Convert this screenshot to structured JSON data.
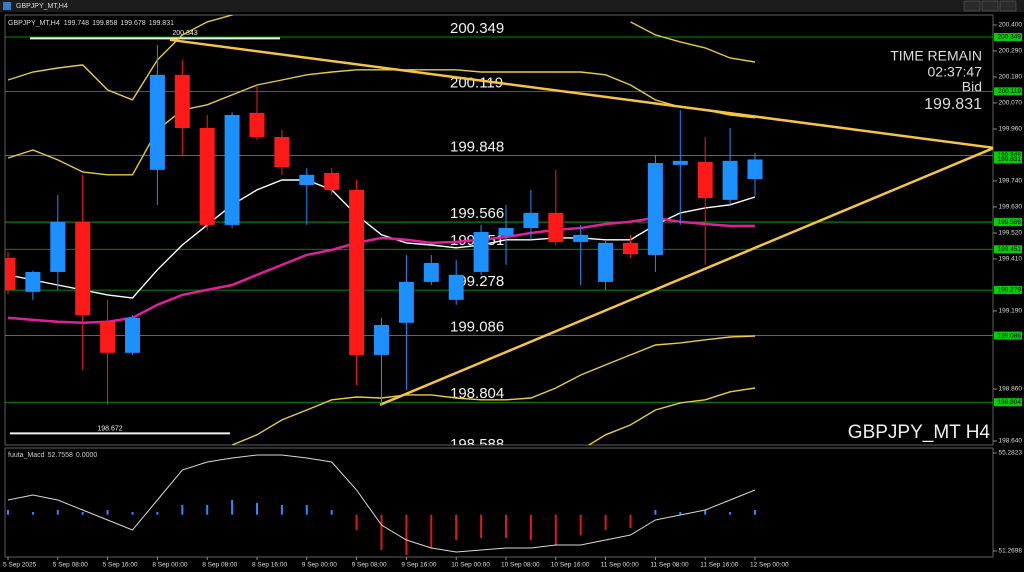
{
  "chart_data": [
    {
      "type": "candlestick",
      "title": "GBPJPY_MT,H4",
      "categories": [
        "5 Sep 2025",
        null,
        "5 Sep 08:00",
        null,
        "5 Sep 16:00",
        null,
        "8 Sep 00:00",
        null,
        "8 Sep 08:00",
        null,
        "8 Sep 16:00",
        null,
        "9 Sep 00:00",
        null,
        "9 Sep 08:00",
        null,
        "9 Sep 16:00",
        null,
        "10 Sep 00:00",
        null,
        "10 Sep 08:00",
        null,
        "10 Sep 16:00",
        null,
        "11 Sep 00:00",
        null,
        "11 Sep 08:00",
        null,
        "11 Sep 16:00",
        null,
        "12 Sep 00:00"
      ],
      "candles": {
        "up_color": "#1e8fff",
        "down_color": "#ff1a1a",
        "open": [
          199.414,
          199.271,
          199.355,
          199.567,
          199.144,
          199.013,
          199.787,
          200.189,
          199.964,
          199.554,
          200.028,
          199.926,
          199.723,
          199.774,
          199.702,
          199.004,
          199.14,
          199.313,
          199.237,
          199.355,
          199.508,
          199.541,
          199.605,
          199.482,
          199.313,
          199.478,
          199.427,
          199.808,
          199.82,
          199.66,
          199.748
        ],
        "high": [
          199.44,
          199.36,
          199.681,
          199.766,
          199.237,
          199.173,
          200.315,
          200.252,
          200.019,
          200.03,
          200.146,
          199.956,
          199.795,
          199.795,
          199.744,
          199.161,
          199.427,
          199.427,
          199.406,
          199.554,
          199.639,
          199.702,
          199.787,
          199.554,
          199.491,
          199.512,
          199.85,
          200.04,
          199.926,
          199.964,
          199.858
        ],
        "low": [
          199.26,
          199.237,
          199.279,
          198.941,
          198.793,
          199.004,
          199.639,
          199.85,
          199.533,
          199.54,
          199.914,
          199.766,
          199.554,
          199.681,
          198.877,
          198.793,
          198.856,
          199.3,
          199.216,
          199.343,
          199.385,
          199.491,
          199.469,
          199.3,
          199.279,
          199.414,
          199.355,
          199.554,
          199.385,
          199.639,
          199.678
        ],
        "close": [
          199.279,
          199.355,
          199.567,
          199.173,
          199.013,
          199.161,
          200.189,
          199.964,
          199.554,
          200.019,
          199.926,
          199.799,
          199.766,
          199.702,
          199.004,
          199.131,
          199.313,
          199.393,
          199.343,
          199.524,
          199.541,
          199.605,
          199.482,
          199.512,
          199.478,
          199.431,
          199.816,
          199.825,
          199.668,
          199.825,
          199.831
        ]
      },
      "lines": [
        {
          "color": "#e8cc3a",
          "values": [
            200.167,
            200.201,
            200.218,
            200.231,
            200.125,
            200.083,
            200.252,
            200.358,
            200.413,
            200.442,
            200.485,
            null,
            null,
            null,
            null,
            null,
            null,
            null,
            null,
            null,
            null,
            null,
            null,
            null,
            null,
            200.413,
            200.358,
            200.328,
            200.303,
            200.26,
            200.243
          ]
        },
        {
          "color": "#e8cc3a",
          "values": [
            199.837,
            199.871,
            199.829,
            199.778,
            199.766,
            199.766,
            199.956,
            200.04,
            200.062,
            200.104,
            200.146,
            200.167,
            200.189,
            200.201,
            200.21,
            200.21,
            200.21,
            200.21,
            200.21,
            200.201,
            200.201,
            200.201,
            200.201,
            200.201,
            200.189,
            200.146,
            200.083,
            200.053,
            200.04,
            200.019,
            200.007
          ]
        },
        {
          "color": "#ffffff",
          "values": [
            199.343,
            199.321,
            199.3,
            199.279,
            199.258,
            199.245,
            199.364,
            199.469,
            199.554,
            199.639,
            199.702,
            199.744,
            199.744,
            199.702,
            199.596,
            199.512,
            199.478,
            199.469,
            199.457,
            199.469,
            199.491,
            199.491,
            199.499,
            199.499,
            199.491,
            199.491,
            199.554,
            199.605,
            199.626,
            199.639,
            199.672
          ]
        },
        {
          "color": "#e0209a",
          "values": [
            199.161,
            199.152,
            199.144,
            199.14,
            199.144,
            199.161,
            199.216,
            199.258,
            199.279,
            199.3,
            199.343,
            199.385,
            199.427,
            199.448,
            199.478,
            199.499,
            199.491,
            199.478,
            199.482,
            199.491,
            199.503,
            199.52,
            199.533,
            199.541,
            199.558,
            199.567,
            199.584,
            199.567,
            199.558,
            199.55,
            199.55
          ]
        },
        {
          "color": "#e8cc3a",
          "values": [
            null,
            null,
            null,
            null,
            null,
            null,
            null,
            null,
            null,
            198.623,
            198.666,
            198.729,
            198.771,
            198.814,
            198.826,
            198.822,
            198.835,
            198.835,
            198.822,
            198.814,
            198.814,
            198.822,
            198.864,
            198.919,
            198.962,
            199.004,
            199.046,
            199.055,
            199.068,
            199.08,
            199.084
          ]
        },
        {
          "color": "#e8cc3a",
          "values": [
            null,
            null,
            null,
            null,
            null,
            null,
            null,
            null,
            null,
            null,
            null,
            null,
            null,
            null,
            null,
            null,
            null,
            null,
            null,
            null,
            null,
            null,
            null,
            198.602,
            198.666,
            198.708,
            198.771,
            198.801,
            198.814,
            198.848,
            198.864
          ]
        }
      ],
      "trendlines": [
        {
          "color": "#f5c542",
          "x": [
            6.5,
            39.6
          ],
          "y": [
            200.337,
            199.88
          ]
        },
        {
          "color": "#f5c542",
          "x": [
            14.94,
            39.6
          ],
          "y": [
            198.793,
            199.88
          ]
        }
      ],
      "levels": {
        "color": "#00c000",
        "values": [
          200.349,
          200.119,
          199.848,
          199.566,
          199.451,
          199.278,
          199.086,
          198.804,
          198.588
        ]
      },
      "price_marks": [
        200.343,
        198.672
      ],
      "axis_tags": {
        "color": "#00d000",
        "values": [
          200.349,
          200.119,
          199.848,
          199.831,
          199.566,
          199.451,
          199.279,
          199.086,
          198.804
        ]
      },
      "ylim": [
        198.623,
        200.442
      ],
      "yticks": [
        {
          "value": 200.4,
          "label": "200.400"
        },
        {
          "value": 200.29,
          "label": "200.290"
        },
        {
          "value": 200.18,
          "label": "200.180"
        },
        {
          "value": 200.07,
          "label": "200.070"
        },
        {
          "value": 199.96,
          "label": "199.960"
        },
        {
          "value": 199.74,
          "label": "199.740"
        },
        {
          "value": 199.63,
          "label": "199.630"
        },
        {
          "value": 199.52,
          "label": "199.520"
        },
        {
          "value": 199.41,
          "label": "199.410"
        },
        {
          "value": 199.19,
          "label": "199.190"
        },
        {
          "value": 198.86,
          "label": "198.860"
        },
        {
          "value": 198.64,
          "label": "198.640"
        }
      ],
      "info": {
        "time_remain_label": "TIME REMAIN",
        "time_remain": "02:37:47",
        "bid_label": "Bid",
        "bid": 199.831
      },
      "watermark": "GBPJPY_MT H4"
    },
    {
      "type": "macd",
      "title": "fuuta_Macd",
      "readout": [
        52.7558,
        {
          "value": 0,
          "label": "0.0000"
        }
      ],
      "histogram": {
        "up_color": "#2a8cff",
        "down_color": "#e01818",
        "values": [
          52.948,
          52.867,
          52.948,
          52.867,
          52.948,
          52.867,
          52.867,
          53.153,
          53.153,
          53.358,
          53.235,
          53.153,
          53.153,
          52.948,
          52.13,
          51.311,
          51.106,
          51.393,
          51.72,
          51.802,
          51.802,
          51.72,
          51.516,
          51.925,
          52.13,
          52.212,
          52.948,
          52.867,
          52.948,
          52.867,
          52.948
        ]
      },
      "signal": {
        "color": "#d8d8d8",
        "values": [
          53.358,
          53.563,
          53.358,
          52.948,
          52.539,
          52.13,
          53.358,
          54.586,
          54.914,
          55.078,
          55.2,
          55.2,
          55.078,
          54.914,
          53.767,
          52.334,
          51.72,
          51.393,
          51.229,
          51.311,
          51.393,
          51.393,
          51.516,
          51.516,
          51.72,
          51.925,
          52.539,
          52.744,
          52.948,
          53.358,
          53.767
        ]
      },
      "ylim": [
        51.024,
        55.487
      ],
      "yticks": [
        55.2823,
        51.2698
      ]
    }
  ]
}
